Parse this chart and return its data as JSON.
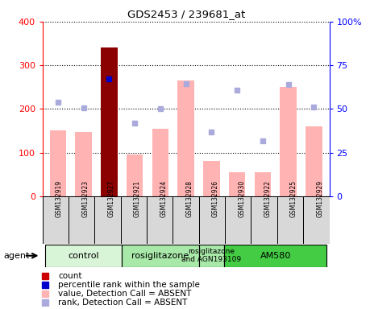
{
  "title": "GDS2453 / 239681_at",
  "samples": [
    "GSM132919",
    "GSM132923",
    "GSM132927",
    "GSM132921",
    "GSM132924",
    "GSM132928",
    "GSM132926",
    "GSM132930",
    "GSM132922",
    "GSM132925",
    "GSM132929"
  ],
  "values": [
    150,
    148,
    340,
    95,
    155,
    265,
    80,
    55,
    55,
    250,
    160
  ],
  "ranks_left_scale": [
    215,
    203,
    268,
    168,
    200,
    258,
    147,
    243,
    127,
    256,
    205
  ],
  "is_count": [
    false,
    false,
    true,
    false,
    false,
    false,
    false,
    false,
    false,
    false,
    false
  ],
  "bar_color_normal": "#ffb3b3",
  "bar_color_count": "#8b0000",
  "rank_color_absent": "#aaaadd",
  "rank_color_present": "#0000cc",
  "ylim": [
    0,
    400
  ],
  "y2lim": [
    0,
    100
  ],
  "yticks": [
    0,
    100,
    200,
    300,
    400
  ],
  "y2ticks": [
    0,
    25,
    50,
    75,
    100
  ],
  "y2labels": [
    "0",
    "25",
    "50",
    "75",
    "100%"
  ],
  "groups": [
    {
      "label": "control",
      "start": 0,
      "end": 3,
      "color": "#d8f5d8"
    },
    {
      "label": "rosiglitazone",
      "start": 3,
      "end": 6,
      "color": "#a8e8a8"
    },
    {
      "label": "rosiglitazone\nand AGN193109",
      "start": 6,
      "end": 7,
      "color": "#a8e8a8"
    },
    {
      "label": "AM580",
      "start": 7,
      "end": 11,
      "color": "#44cc44"
    }
  ],
  "legend_colors": [
    "#cc0000",
    "#0000cc",
    "#ffb3b3",
    "#aaaadd"
  ],
  "legend_labels": [
    "count",
    "percentile rank within the sample",
    "value, Detection Call = ABSENT",
    "rank, Detection Call = ABSENT"
  ]
}
